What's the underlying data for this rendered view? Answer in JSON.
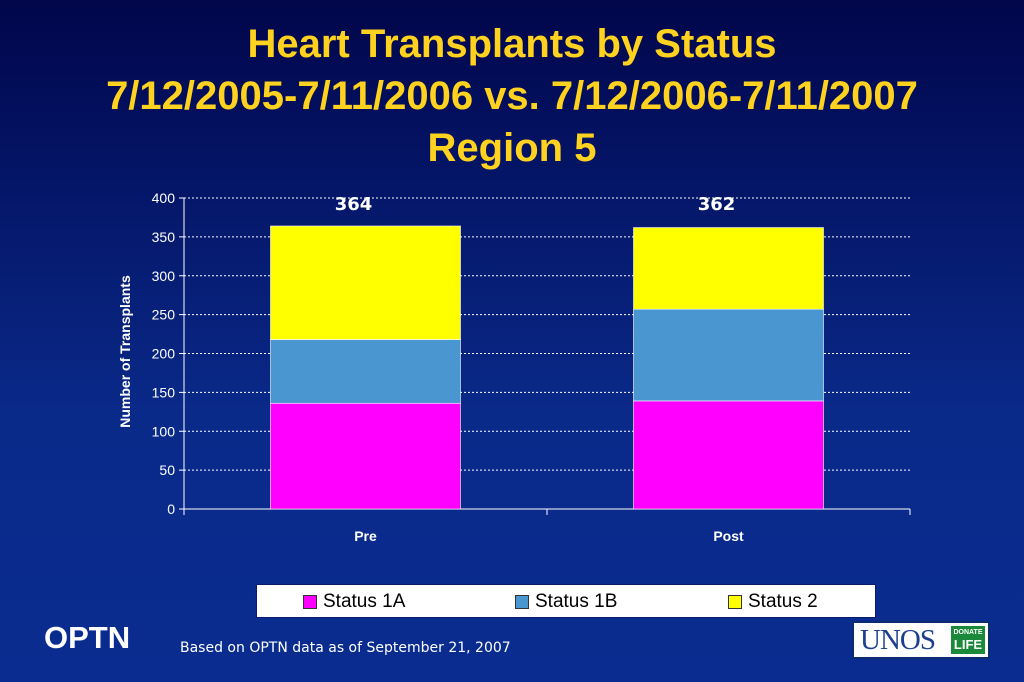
{
  "title": {
    "line1": "Heart Transplants by Status",
    "line2": "7/12/2005-7/11/2006 vs. 7/12/2006-7/11/2007",
    "line3": "Region 5"
  },
  "chart_data": {
    "type": "bar",
    "stacked": true,
    "categories": [
      "Pre",
      "Post"
    ],
    "series": [
      {
        "name": "Status 1A",
        "color": "#ff00ff",
        "values": [
          136,
          139
        ]
      },
      {
        "name": "Status 1B",
        "color": "#4a96d0",
        "values": [
          82,
          118
        ]
      },
      {
        "name": "Status 2",
        "color": "#ffff00",
        "values": [
          146,
          105
        ]
      }
    ],
    "totals": [
      "364",
      "362"
    ],
    "ylabel": "Number of Transplants",
    "ylim": [
      0,
      400
    ],
    "yticks": [
      "0",
      "50",
      "100",
      "150",
      "200",
      "250",
      "300",
      "350",
      "400"
    ],
    "grid": true,
    "legend_position": "bottom"
  },
  "legend": {
    "items": [
      {
        "label": "Status 1A",
        "color": "#ff00ff"
      },
      {
        "label": "Status 1B",
        "color": "#4a96d0"
      },
      {
        "label": "Status 2",
        "color": "#ffff00"
      }
    ]
  },
  "footer": {
    "org": "OPTN",
    "note": "Based on OPTN data as of  September  21, 2007",
    "logo_text": "UNOS",
    "logo_badge_top": "DONATE",
    "logo_badge_bottom": "LIFE"
  }
}
